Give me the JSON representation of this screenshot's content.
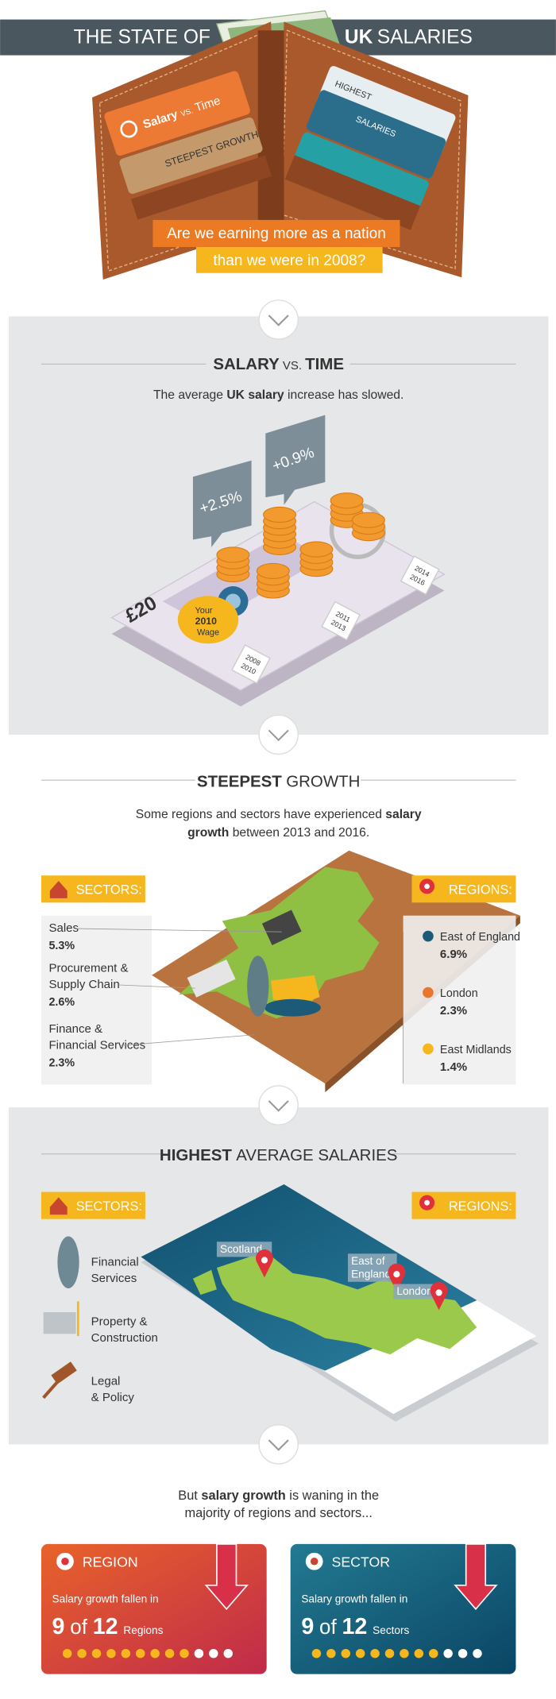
{
  "header": {
    "title_left": "THE STATE OF",
    "title_bold": "UK",
    "title_right": "SALARIES",
    "left_card": {
      "salary": "Salary",
      "vs": "VS.",
      "time": "Time",
      "sub": "STEEPEST GROWTH"
    },
    "right_cards": [
      "HIGHEST",
      "SALARIES"
    ],
    "question": [
      "Are we earning more as a nation",
      "than we were in 2008?"
    ]
  },
  "salary_vs_time": {
    "title": [
      "SALARY",
      "VS.",
      "TIME"
    ],
    "subtitle": [
      "The average ",
      "UK salary",
      " increase has slowed."
    ],
    "labels": [
      "+2.5%",
      "+0.9%"
    ],
    "note": "£20",
    "wage": [
      "Your",
      "2010",
      "Wage"
    ],
    "tags": [
      [
        "2008",
        "2010"
      ],
      [
        "2011",
        "2013"
      ],
      [
        "2014",
        "2016"
      ]
    ]
  },
  "steepest_growth": {
    "title": [
      "STEEPEST",
      "GROWTH"
    ],
    "subtitle": [
      [
        "Some regions and sectors have experienced ",
        "salary"
      ],
      [
        "growth",
        " between 2013 and 2016."
      ]
    ],
    "sectors_label": "SECTORS:",
    "regions_label": "REGIONS:",
    "sectors": [
      {
        "name": [
          "Sales"
        ],
        "value": "5.3%"
      },
      {
        "name": [
          "Procurement &",
          "Supply Chain"
        ],
        "value": "2.6%"
      },
      {
        "name": [
          "Finance &",
          "Financial Services"
        ],
        "value": "2.3%"
      }
    ],
    "regions": [
      {
        "name": "East of England",
        "value": "6.9%",
        "color": "#1d5a78"
      },
      {
        "name": "London",
        "value": "2.3%",
        "color": "#e8762c"
      },
      {
        "name": "East Midlands",
        "value": "1.4%",
        "color": "#f6b71e"
      }
    ]
  },
  "highest_salaries": {
    "title": [
      "HIGHEST",
      "AVERAGE SALARIES"
    ],
    "sectors_label": "SECTORS:",
    "regions_label": "REGIONS:",
    "sectors": [
      [
        "Financial",
        "Services"
      ],
      [
        "Property &",
        "Construction"
      ],
      [
        "Legal",
        "& Policy"
      ]
    ],
    "regions": [
      [
        "Scotland"
      ],
      [
        "East of",
        "England"
      ],
      [
        "London"
      ]
    ]
  },
  "waning": {
    "text": [
      [
        "But ",
        "salary growth",
        " is waning in the"
      ],
      [
        "majority of regions and sectors..."
      ]
    ],
    "cards": [
      {
        "label": "REGION",
        "line": "Salary growth fallen in",
        "count": 9,
        "of": "of",
        "total": 12,
        "unit": "Regions"
      },
      {
        "label": "SECTOR",
        "line": "Salary growth fallen in",
        "count": 9,
        "of": "of",
        "total": 12,
        "unit": "Sectors"
      }
    ]
  }
}
